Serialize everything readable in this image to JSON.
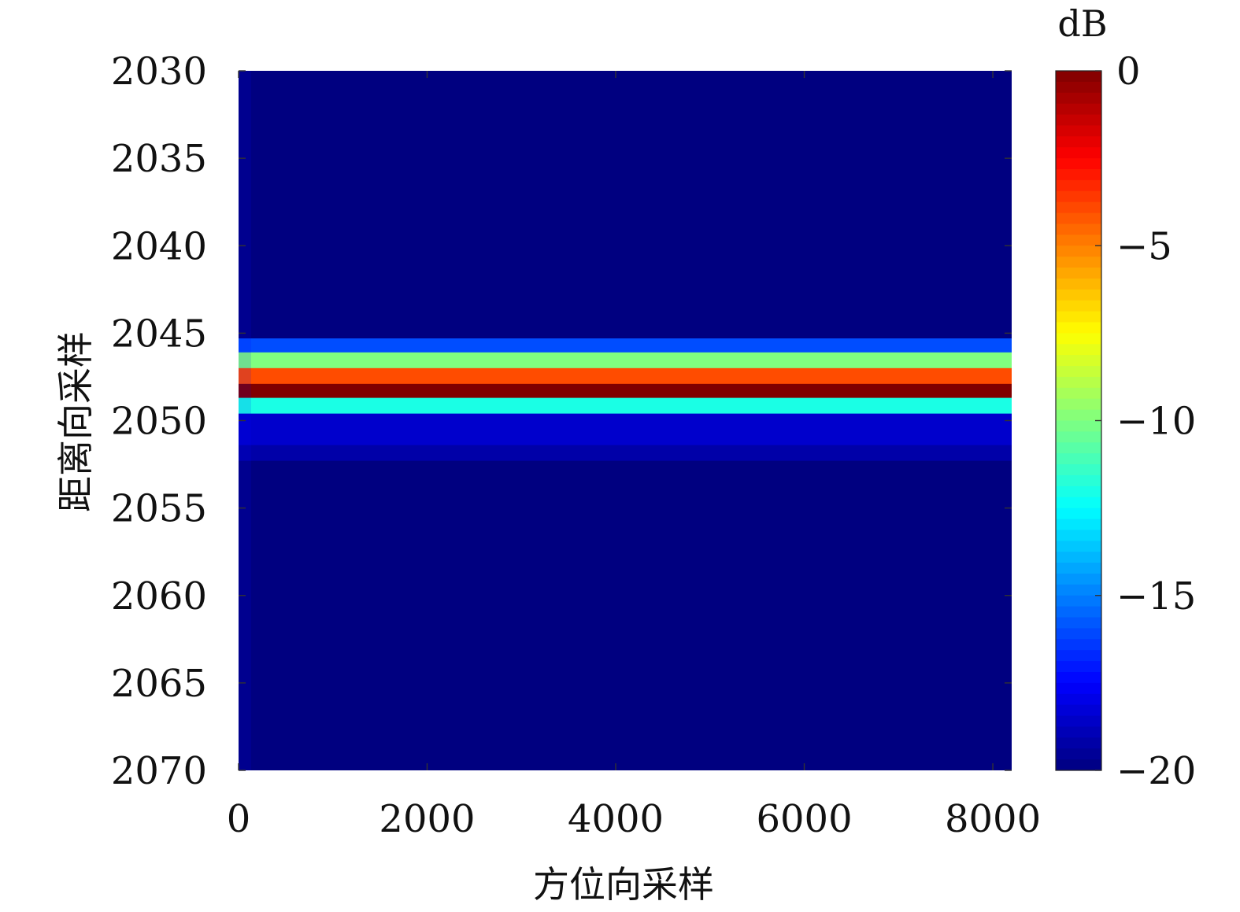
{
  "chart_data": {
    "type": "heatmap",
    "xlabel": "方位向采样",
    "ylabel": "距离向采样",
    "colorbar_label": "dB",
    "colormap": "jet",
    "x_range": [
      0,
      8200
    ],
    "y_range": [
      2030,
      2070
    ],
    "y_reversed": true,
    "x_ticks": [
      0,
      2000,
      4000,
      6000,
      8000
    ],
    "y_ticks": [
      2030,
      2035,
      2040,
      2045,
      2050,
      2055,
      2060,
      2065,
      2070
    ],
    "colorbar_range": [
      -20,
      0
    ],
    "colorbar_ticks": [
      0,
      -5,
      -10,
      -15,
      -20
    ],
    "x_tick_labels": [
      "0",
      "2000",
      "4000",
      "6000",
      "8000"
    ],
    "y_tick_labels": [
      "2030",
      "2035",
      "2040",
      "2045",
      "2050",
      "2055",
      "2060",
      "2065",
      "2070"
    ],
    "colorbar_tick_labels": [
      "0",
      "−5",
      "−10",
      "−15",
      "−20"
    ],
    "rows": [
      {
        "range": 2044.5,
        "db": -20
      },
      {
        "range": 2045.3,
        "db": -16
      },
      {
        "range": 2046.1,
        "db": -10
      },
      {
        "range": 2047.0,
        "db": -4
      },
      {
        "range": 2047.9,
        "db": 0
      },
      {
        "range": 2048.7,
        "db": -12
      },
      {
        "range": 2049.6,
        "db": -18.5
      },
      {
        "range": 2050.5,
        "db": -18.5
      },
      {
        "range": 2051.4,
        "db": -19.2
      },
      {
        "range": 2052.3,
        "db": -20
      }
    ]
  }
}
